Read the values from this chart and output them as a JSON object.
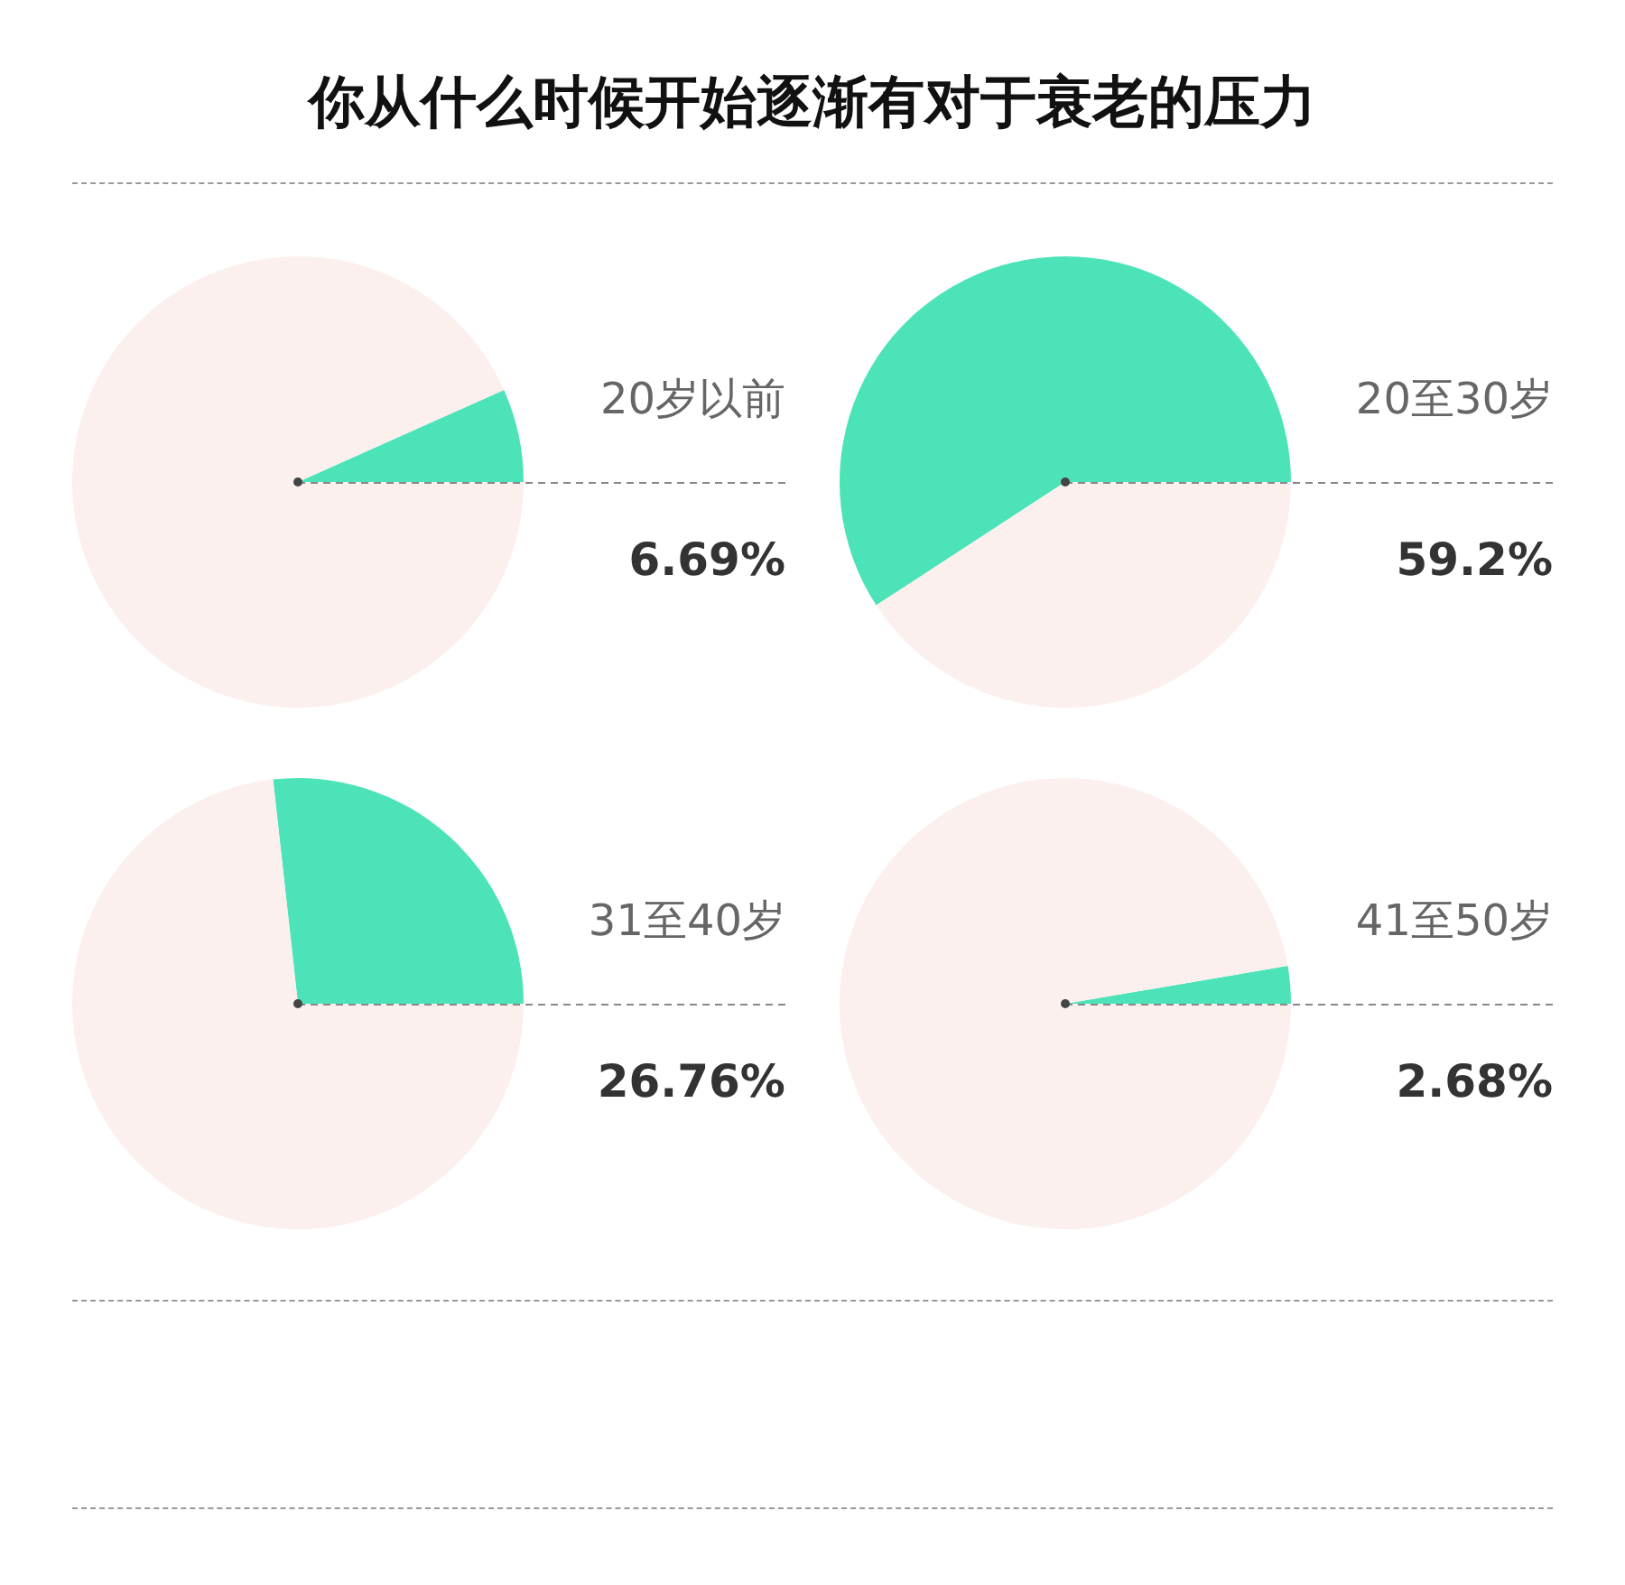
{
  "chart_data": [
    {
      "type": "pie",
      "title": "你从什么时候开始逐渐有对于衰老的压力",
      "categories": [
        "20岁以前",
        null
      ],
      "values": [
        6.69,
        93.31
      ],
      "annotations": [
        "6.69%"
      ],
      "colors": [
        "#4de3b9",
        "#fbf0ee"
      ],
      "legend": false
    },
    {
      "type": "pie",
      "categories": [
        "20至30岁",
        null
      ],
      "values": [
        59.2,
        40.8
      ],
      "annotations": [
        "59.2%"
      ],
      "colors": [
        "#4de3b9",
        "#fbf0ee"
      ],
      "legend": false
    },
    {
      "type": "pie",
      "categories": [
        "31至40岁",
        null
      ],
      "values": [
        26.76,
        73.24
      ],
      "annotations": [
        "26.76%"
      ],
      "colors": [
        "#4de3b9",
        "#fbf0ee"
      ],
      "legend": false
    },
    {
      "type": "pie",
      "categories": [
        "41至50岁",
        null
      ],
      "values": [
        2.68,
        97.32
      ],
      "annotations": [
        "2.68%"
      ],
      "colors": [
        "#4de3b9",
        "#fbf0ee"
      ],
      "legend": false
    }
  ]
}
